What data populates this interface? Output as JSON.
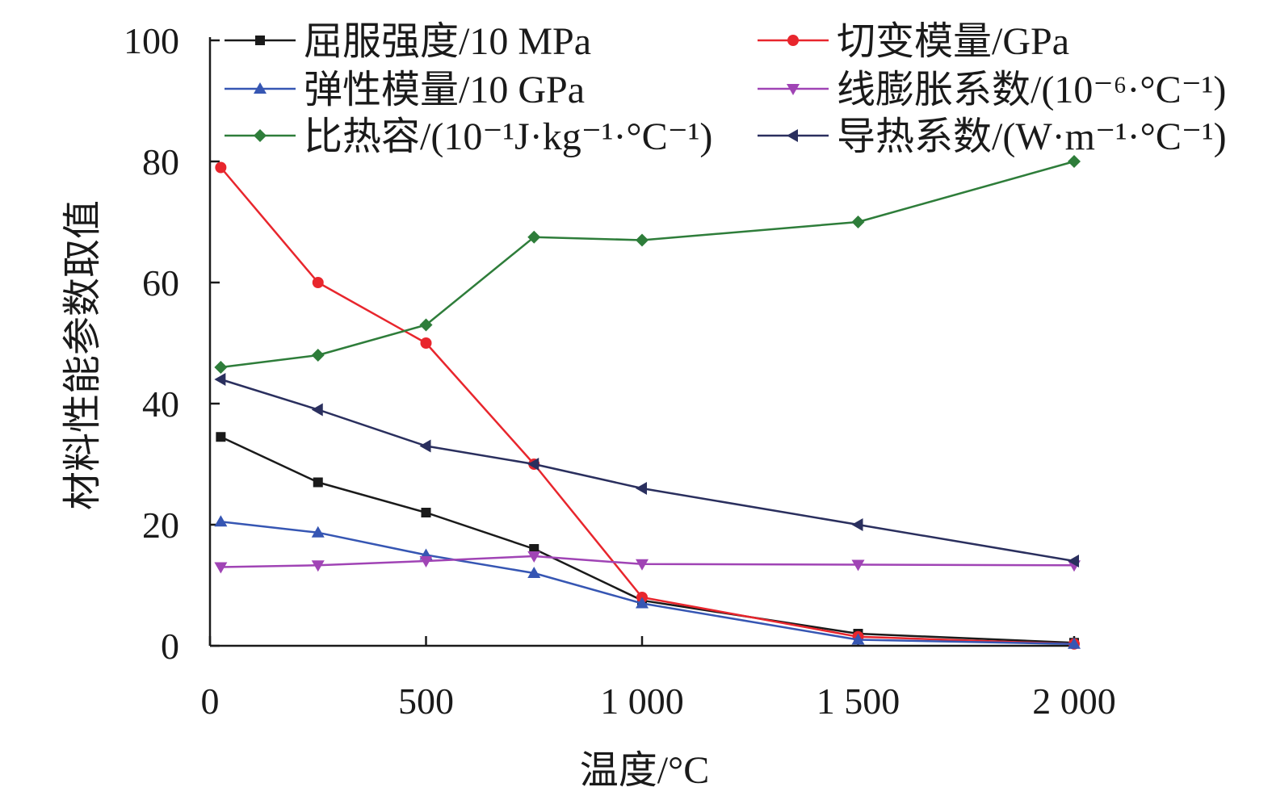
{
  "chart_data": {
    "type": "line",
    "title": "",
    "xlabel": "温度/°C",
    "ylabel": "材料性能参数取值",
    "xlim": [
      0,
      2000
    ],
    "ylim": [
      0,
      100
    ],
    "x_ticks": [
      0,
      500,
      1000,
      1500,
      2000
    ],
    "x_tick_labels": [
      "0",
      "500",
      "1 000",
      "1 500",
      "2 000"
    ],
    "y_ticks": [
      0,
      20,
      40,
      60,
      80,
      100
    ],
    "y_tick_labels": [
      "0",
      "20",
      "40",
      "60",
      "80",
      "100"
    ],
    "grid": false,
    "legend_position": "top",
    "series": [
      {
        "name": "屈服强度/10 MPa",
        "color": "#1a1a1a",
        "marker": "square",
        "x": [
          25,
          250,
          500,
          750,
          1000,
          1500,
          2000
        ],
        "y": [
          34.5,
          27,
          22,
          16,
          7.5,
          2,
          0.5
        ]
      },
      {
        "name": "切变模量/GPa",
        "color": "#e8262d",
        "marker": "circle",
        "x": [
          25,
          250,
          500,
          750,
          1000,
          1500,
          2000
        ],
        "y": [
          79,
          60,
          50,
          30,
          8,
          1.5,
          0.3
        ]
      },
      {
        "name": "弹性模量/10 GPa",
        "color": "#3656b3",
        "marker": "triangle-up",
        "x": [
          25,
          250,
          500,
          750,
          1000,
          1500,
          2000
        ],
        "y": [
          20.5,
          18.7,
          15,
          12,
          7,
          1,
          0.3
        ]
      },
      {
        "name": "线膨胀系数/(10⁻⁶·°C⁻¹)",
        "color": "#a044b5",
        "marker": "triangle-down",
        "x": [
          25,
          250,
          500,
          750,
          1000,
          1500,
          2000
        ],
        "y": [
          13,
          13.3,
          14,
          14.8,
          13.5,
          13.4,
          13.3
        ]
      },
      {
        "name": "比热容/(10⁻¹J·kg⁻¹·°C⁻¹)",
        "color": "#2e7d3a",
        "marker": "diamond",
        "x": [
          25,
          250,
          500,
          750,
          1000,
          1500,
          2000
        ],
        "y": [
          46,
          48,
          53,
          67.5,
          67,
          70,
          80
        ]
      },
      {
        "name": "导热系数/(W·m⁻¹·°C⁻¹)",
        "color": "#2a2f5e",
        "marker": "triangle-left",
        "x": [
          25,
          250,
          500,
          750,
          1000,
          1500,
          2000
        ],
        "y": [
          44,
          39,
          33,
          30,
          26,
          20,
          14
        ]
      }
    ]
  }
}
